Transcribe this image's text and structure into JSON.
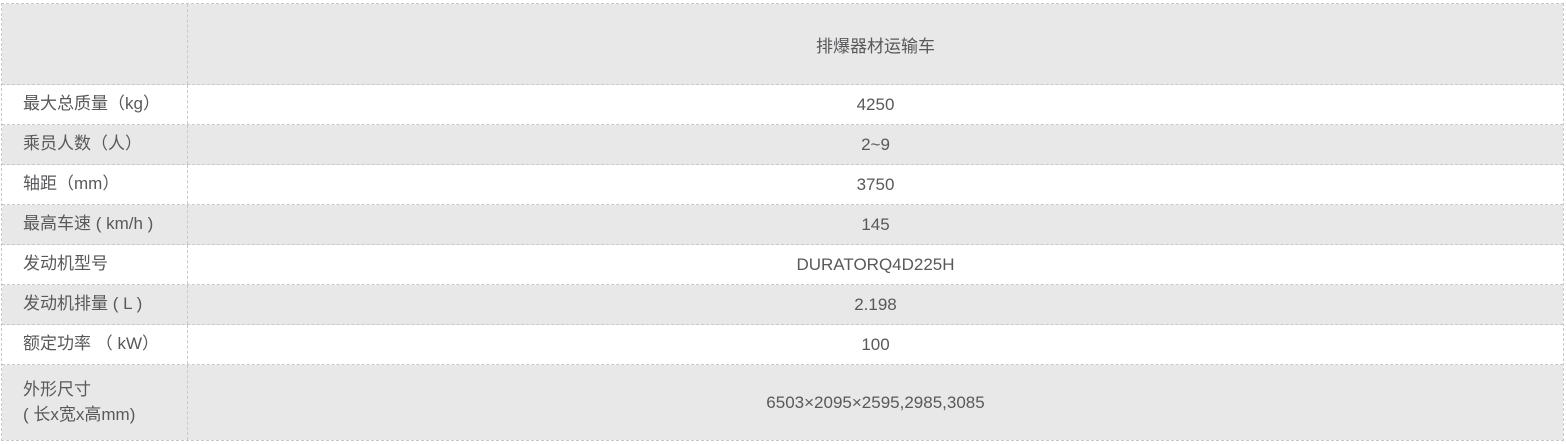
{
  "table": {
    "title": "排爆器材运输车",
    "columns": {
      "label_header": "",
      "value_header": "排爆器材运输车"
    },
    "rows": [
      {
        "label": "最大总质量（kg）",
        "value": "4250"
      },
      {
        "label": "乘员人数（人）",
        "value": "2~9"
      },
      {
        "label": "轴距（mm）",
        "value": "3750"
      },
      {
        "label": "最高车速 ( km/h )",
        "value": "145"
      },
      {
        "label": "发动机型号",
        "value": "DURATORQ4D225H"
      },
      {
        "label": "发动机排量 ( L )",
        "value": "2.198"
      },
      {
        "label": "额定功率 （ kW）",
        "value": "100"
      },
      {
        "label": "外形尺寸\n( 长x宽x高mm)",
        "value": "6503×2095×2595,2985,3085"
      }
    ],
    "colors": {
      "row_shade": "#e8e8e8",
      "border": "#c9c9c9",
      "text": "#58595b",
      "background": "#ffffff"
    }
  }
}
